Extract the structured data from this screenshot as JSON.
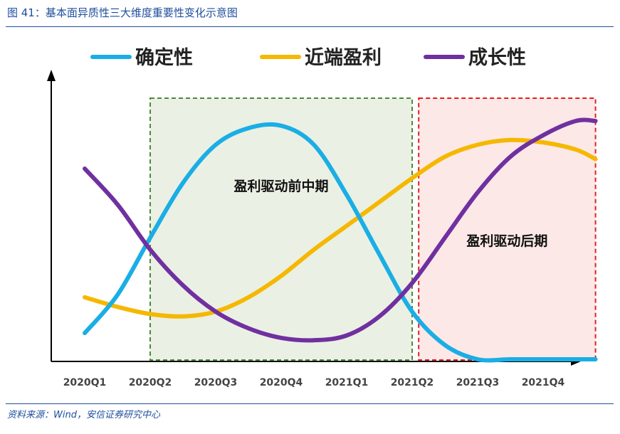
{
  "figure": {
    "title": "图 41：基本面异质性三大维度重要性变化示意图",
    "source": "资料来源：Wind，安信证券研究中心"
  },
  "chart_data": {
    "type": "line",
    "title": "",
    "xlabel": "",
    "ylabel": "",
    "categories": [
      "2020Q1",
      "2020Q2",
      "2020Q3",
      "2020Q4",
      "2021Q1",
      "2021Q2",
      "2021Q3",
      "2021Q4"
    ],
    "x": [
      0.5,
      1.0,
      1.5,
      2.0,
      2.5,
      3.0,
      3.5,
      4.0,
      4.5,
      5.0,
      5.5,
      6.0,
      6.5,
      7.0,
      7.5,
      8.0,
      8.3
    ],
    "xlim": [
      0,
      8.3
    ],
    "ylim": [
      0,
      100
    ],
    "grid": false,
    "legend": "top",
    "series": [
      {
        "name": "确定性",
        "color": "#1aaee5",
        "values": [
          11,
          27,
          51,
          74,
          90,
          97,
          98,
          90,
          69,
          44,
          20,
          6,
          0,
          0,
          0,
          0,
          0
        ]
      },
      {
        "name": "近端盈利",
        "color": "#f5b800",
        "values": [
          26,
          22,
          19,
          18,
          20,
          26,
          35,
          46,
          56,
          66,
          76,
          85,
          90,
          92,
          91,
          88,
          84
        ]
      },
      {
        "name": "成长性",
        "color": "#7030a0",
        "values": [
          80,
          65,
          46,
          31,
          20,
          13,
          9,
          8,
          10,
          18,
          32,
          51,
          70,
          85,
          94,
          100,
          100
        ]
      }
    ],
    "regions": [
      {
        "label": "盈利驱动前中期",
        "from": 1.5,
        "to": 5.5,
        "fill": "#ebf0e4",
        "border": "#4d8a3c"
      },
      {
        "label": "盈利驱动后期",
        "from": 5.6,
        "to": 8.3,
        "fill": "#fde8e8",
        "border": "#e02020"
      }
    ]
  }
}
